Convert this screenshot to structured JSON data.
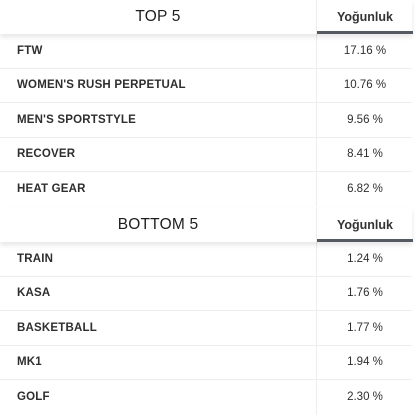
{
  "top": {
    "title": "TOP 5",
    "column_header": "Yoğunluk",
    "rows": [
      {
        "label": "FTW",
        "value": "17.16 %"
      },
      {
        "label": "WOMEN'S RUSH PERPETUAL",
        "value": "10.76 %"
      },
      {
        "label": "MEN'S SPORTSTYLE",
        "value": "9.56 %"
      },
      {
        "label": "RECOVER",
        "value": "8.41 %"
      },
      {
        "label": "HEAT GEAR",
        "value": "6.82 %"
      }
    ]
  },
  "bottom": {
    "title": "BOTTOM 5",
    "column_header": "Yoğunluk",
    "rows": [
      {
        "label": "TRAIN",
        "value": "1.24 %"
      },
      {
        "label": "KASA",
        "value": "1.76 %"
      },
      {
        "label": "BASKETBALL",
        "value": "1.77 %"
      },
      {
        "label": "MK1",
        "value": "1.94 %"
      },
      {
        "label": "GOLF",
        "value": "2.30 %"
      }
    ]
  }
}
